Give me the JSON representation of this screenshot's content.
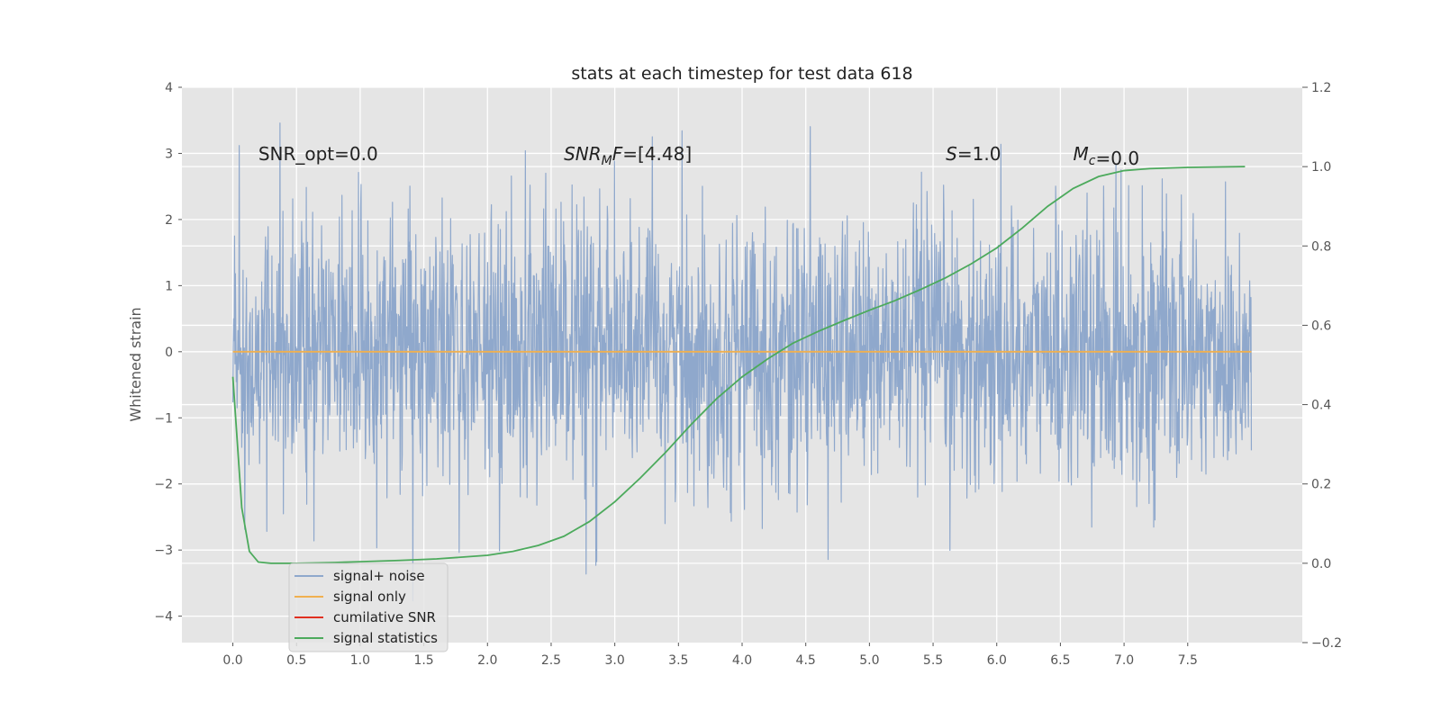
{
  "chart_data": {
    "type": "line",
    "title": "stats at each timestep for test data 618",
    "xlabel": "",
    "ylabel": "Whitened strain",
    "xlim": [
      -0.4,
      8.4
    ],
    "ylim": [
      -4.4,
      4.0
    ],
    "y2lim": [
      -0.2,
      1.2
    ],
    "grid": true,
    "x_ticks": [
      0.0,
      0.5,
      1.0,
      1.5,
      2.0,
      2.5,
      3.0,
      3.5,
      4.0,
      4.5,
      5.0,
      5.5,
      6.0,
      6.5,
      7.0,
      7.5
    ],
    "x_tick_labels": [
      "0.0",
      "0.5",
      "1.0",
      "1.5",
      "2.0",
      "2.5",
      "3.0",
      "3.5",
      "4.0",
      "4.5",
      "5.0",
      "5.5",
      "6.0",
      "6.5",
      "7.0",
      "7.5"
    ],
    "y_ticks": [
      -4,
      -3,
      -2,
      -1,
      0,
      1,
      2,
      3,
      4
    ],
    "y_tick_labels": [
      "−4",
      "−3",
      "−2",
      "−1",
      "0",
      "1",
      "2",
      "3",
      "4"
    ],
    "y2_ticks": [
      -0.2,
      0.0,
      0.2,
      0.4,
      0.6,
      0.8,
      1.0,
      1.2
    ],
    "y2_tick_labels": [
      "−0.2",
      "0.0",
      "0.2",
      "0.4",
      "0.6",
      "0.8",
      "1.0",
      "1.2"
    ],
    "annotations": [
      {
        "text": "SNR_opt=0.0",
        "x": 0.2,
        "y": 2.9
      },
      {
        "text": "SNR_MF=[4.48]",
        "x": 2.6,
        "y": 2.9,
        "math": true
      },
      {
        "text": "S=1.0",
        "x": 5.6,
        "y": 2.9,
        "math": true
      },
      {
        "text": "M_c=0.0",
        "x": 6.6,
        "y": 2.9,
        "math": true
      }
    ],
    "legend_position": "lower-left",
    "series": [
      {
        "name": "signal+ noise",
        "axis": "left",
        "color": "#8fa8cc",
        "x_range": [
          0.0,
          8.0
        ],
        "approx_std": 1.0,
        "approx_min": -3.8,
        "approx_max": 3.6
      },
      {
        "name": "signal only",
        "axis": "left",
        "color": "#f0b050",
        "x": [
          0.0,
          8.0
        ],
        "values": [
          0.0,
          0.0
        ]
      },
      {
        "name": "cumilative SNR",
        "axis": "right",
        "color": "#e03020",
        "x": [],
        "values": []
      },
      {
        "name": "signal statistics",
        "axis": "right",
        "color": "#4caa5c",
        "x": [
          0.0,
          0.07,
          0.13,
          0.2,
          0.3,
          0.5,
          0.8,
          1.0,
          1.3,
          1.6,
          2.0,
          2.2,
          2.4,
          2.6,
          2.8,
          3.0,
          3.2,
          3.4,
          3.6,
          3.8,
          4.0,
          4.2,
          4.4,
          4.6,
          4.8,
          5.0,
          5.2,
          5.4,
          5.6,
          5.8,
          6.0,
          6.2,
          6.4,
          6.6,
          6.8,
          7.0,
          7.2,
          7.5,
          7.95
        ],
        "values": [
          0.47,
          0.14,
          0.03,
          0.003,
          0.0,
          0.0,
          0.002,
          0.004,
          0.007,
          0.011,
          0.02,
          0.03,
          0.045,
          0.068,
          0.105,
          0.155,
          0.215,
          0.28,
          0.35,
          0.415,
          0.47,
          0.515,
          0.555,
          0.585,
          0.612,
          0.638,
          0.662,
          0.69,
          0.72,
          0.755,
          0.795,
          0.845,
          0.9,
          0.945,
          0.975,
          0.99,
          0.995,
          0.998,
          1.0
        ]
      }
    ]
  }
}
